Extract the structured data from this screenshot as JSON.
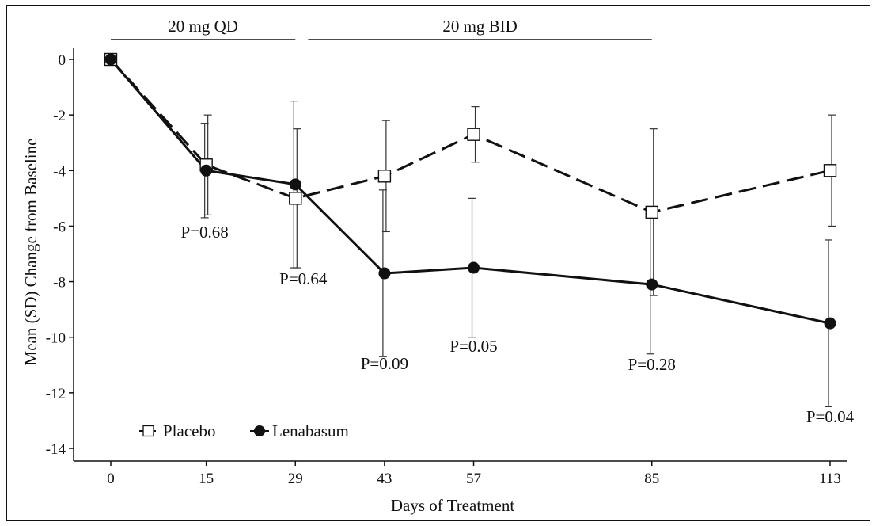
{
  "chart_data": {
    "type": "line",
    "xlabel": "Days of Treatment",
    "ylabel": "Mean (SD) Change from Baseline",
    "ylim": [
      -14.5,
      0.5
    ],
    "y_ticks": [
      0,
      -2,
      -4,
      -6,
      -8,
      -10,
      -12,
      -14
    ],
    "y_tick_labels": [
      "0",
      "-2",
      "-4",
      "-6",
      "-8",
      "-10",
      "-12",
      "-14"
    ],
    "x": [
      0,
      15,
      29,
      43,
      57,
      85,
      113
    ],
    "x_tick_labels": [
      "0",
      "15",
      "29",
      "43",
      "57",
      "85",
      "113"
    ],
    "grid": false,
    "legend_position": "bottom-left",
    "dosing_periods": [
      {
        "label": "20 mg QD",
        "start": 0,
        "end": 29
      },
      {
        "label": "20 mg BID",
        "start": 31,
        "end": 85
      }
    ],
    "series": [
      {
        "name": "Placebo",
        "marker": "open-square",
        "line_style": "dashed",
        "values": [
          0,
          -3.8,
          -5.0,
          -4.2,
          -2.7,
          -5.5,
          -4.0
        ],
        "sd": [
          0,
          1.8,
          2.5,
          2.0,
          1.0,
          3.0,
          2.0
        ]
      },
      {
        "name": "Lenabasum",
        "marker": "filled-circle",
        "line_style": "solid",
        "values": [
          0,
          -4.0,
          -4.5,
          -7.7,
          -7.5,
          -8.1,
          -9.5
        ],
        "sd": [
          0,
          1.7,
          3.0,
          3.0,
          2.5,
          2.5,
          3.0
        ]
      }
    ],
    "annotations": [
      {
        "x": 15,
        "text": "P=0.68"
      },
      {
        "x": 29,
        "text": "P=0.64"
      },
      {
        "x": 43,
        "text": "P=0.09"
      },
      {
        "x": 57,
        "text": "P=0.05"
      },
      {
        "x": 85,
        "text": "P=0.28"
      },
      {
        "x": 113,
        "text": "P=0.04"
      }
    ],
    "colors": {
      "line": "#111111",
      "marker_fill_open": "#ffffff"
    }
  }
}
